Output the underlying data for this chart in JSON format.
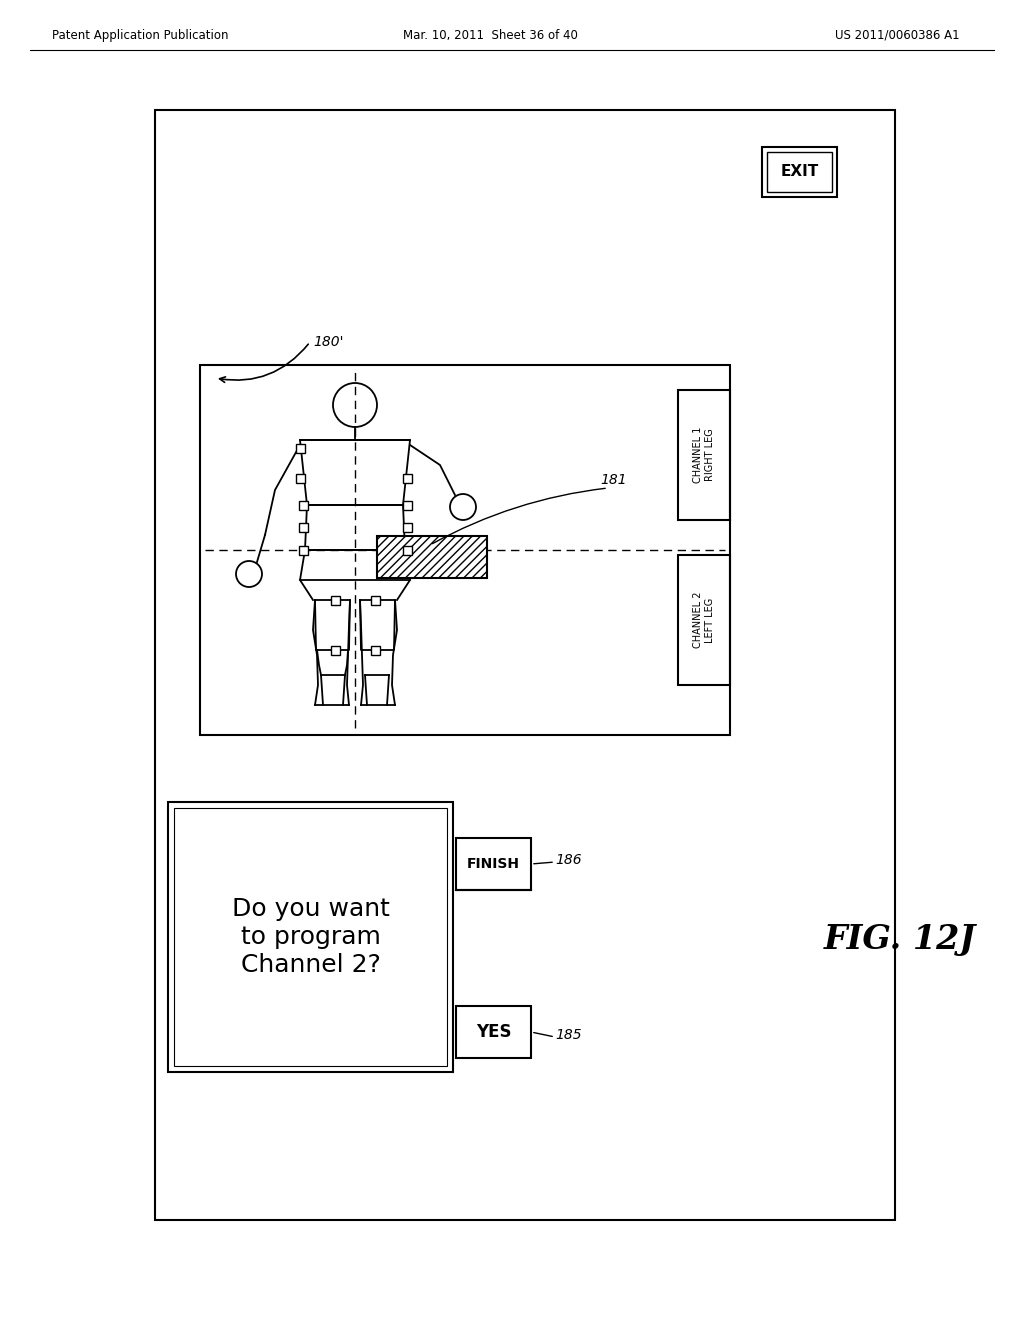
{
  "bg_color": "#ffffff",
  "page_header_left": "Patent Application Publication",
  "page_header_center": "Mar. 10, 2011  Sheet 36 of 40",
  "page_header_right": "US 2011/0060386 A1",
  "label_180": "180'",
  "label_181": "181",
  "label_185": "185",
  "label_186": "186",
  "fig_label": "FIG. 12J",
  "exit_button": "EXIT",
  "channel1_label": "CHANNEL 1\nRIGHT LEG",
  "channel2_label": "CHANNEL 2\nLEFT LEG",
  "dialog_text": "Do you want\nto program\nChannel 2?",
  "yes_button": "YES",
  "finish_button": "FINISH"
}
